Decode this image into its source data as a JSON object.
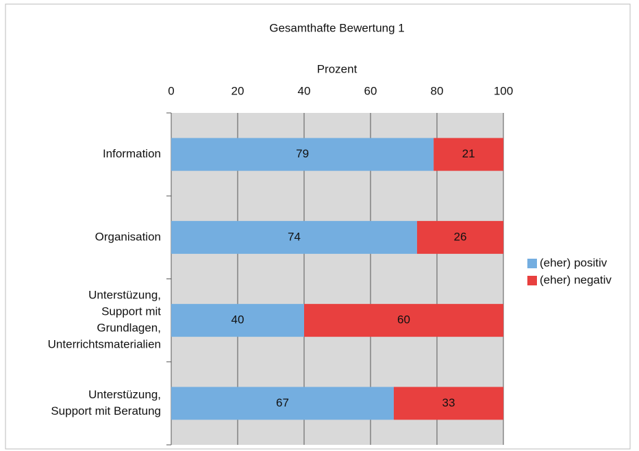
{
  "chart_data": {
    "type": "stacked_bar_horizontal",
    "title": "Gesamthafte Bewertung 1",
    "x_label": "Prozent",
    "categories": [
      [
        "Information"
      ],
      [
        "Organisation"
      ],
      [
        "Unterstüzung,",
        "Support mit",
        "Grundlagen,",
        "Unterrichtsmaterialien"
      ],
      [
        "Unterstüzung,",
        "Support mit Beratung"
      ]
    ],
    "series": [
      {
        "name": "(eher) positiv",
        "color": "#74aee0",
        "values": [
          79,
          74,
          40,
          67
        ]
      },
      {
        "name": "(eher) negativ",
        "color": "#e8403f",
        "values": [
          21,
          26,
          60,
          33
        ]
      }
    ],
    "xlim": [
      0,
      100
    ],
    "xticks": [
      0,
      20,
      40,
      60,
      80,
      100
    ],
    "grid": true,
    "legend": "right"
  }
}
